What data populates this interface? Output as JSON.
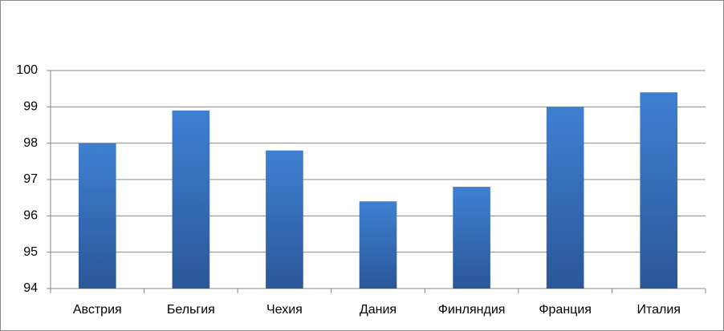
{
  "chart_data": {
    "type": "bar",
    "categories": [
      "Австрия",
      "Бельгия",
      "Чехия",
      "Дания",
      "Финляндия",
      "Франция",
      "Италия"
    ],
    "values": [
      98,
      98.9,
      97.8,
      96.4,
      96.8,
      99,
      99.4
    ],
    "color": "#3f80d2",
    "ylim": [
      94,
      100
    ],
    "yticks": [
      94,
      95,
      96,
      97,
      98,
      99,
      100
    ],
    "grid": true
  }
}
